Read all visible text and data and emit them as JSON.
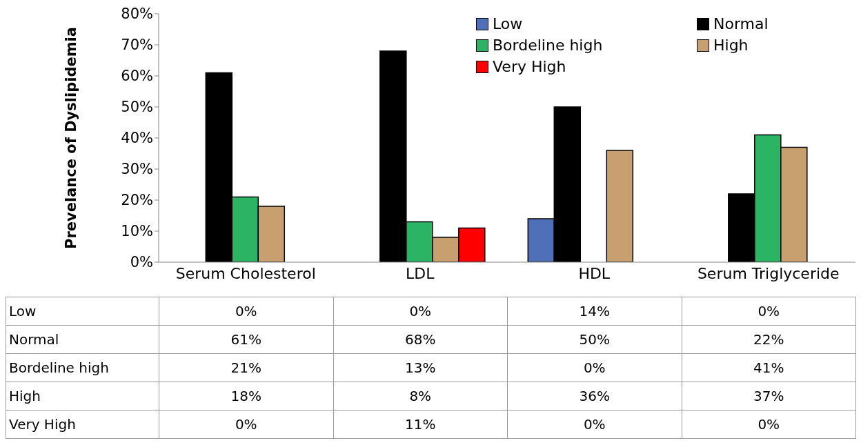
{
  "chart_data": {
    "type": "bar",
    "ylabel": "Prevelance of Dyslipidemia",
    "categories": [
      "Serum  Cholesterol",
      "LDL",
      "HDL",
      "Serum Triglyceride"
    ],
    "series": [
      {
        "name": "Low",
        "color": "#4f6fb8",
        "values": [
          0,
          0,
          14,
          0
        ],
        "value_labels": [
          "0%",
          "0%",
          "14%",
          "0%"
        ]
      },
      {
        "name": "Normal",
        "color": "#000000",
        "values": [
          61,
          68,
          50,
          22
        ],
        "value_labels": [
          "61%",
          "68%",
          "50%",
          "22%"
        ]
      },
      {
        "name": "Bordeline high",
        "color": "#2bb464",
        "values": [
          21,
          13,
          0,
          41
        ],
        "value_labels": [
          "21%",
          "13%",
          "0%",
          "41%"
        ]
      },
      {
        "name": "High",
        "color": "#c8a070",
        "values": [
          18,
          8,
          36,
          37
        ],
        "value_labels": [
          "18%",
          "8%",
          "36%",
          "37%"
        ]
      },
      {
        "name": "Very High",
        "color": "#ff0000",
        "values": [
          0,
          11,
          0,
          0
        ],
        "value_labels": [
          "0%",
          "11%",
          "0%",
          "0%"
        ]
      }
    ],
    "ylim": [
      0,
      80
    ],
    "yticks": [
      {
        "value": 0,
        "label": "0%"
      },
      {
        "value": 10,
        "label": "10%"
      },
      {
        "value": 20,
        "label": "20%"
      },
      {
        "value": 30,
        "label": "30%"
      },
      {
        "value": 40,
        "label": "40%"
      },
      {
        "value": 50,
        "label": "50%"
      },
      {
        "value": 60,
        "label": "60%"
      },
      {
        "value": 70,
        "label": "70%"
      },
      {
        "value": 80,
        "label": "80%"
      }
    ],
    "grid": false,
    "legend": "top right",
    "data_labels": true
  }
}
